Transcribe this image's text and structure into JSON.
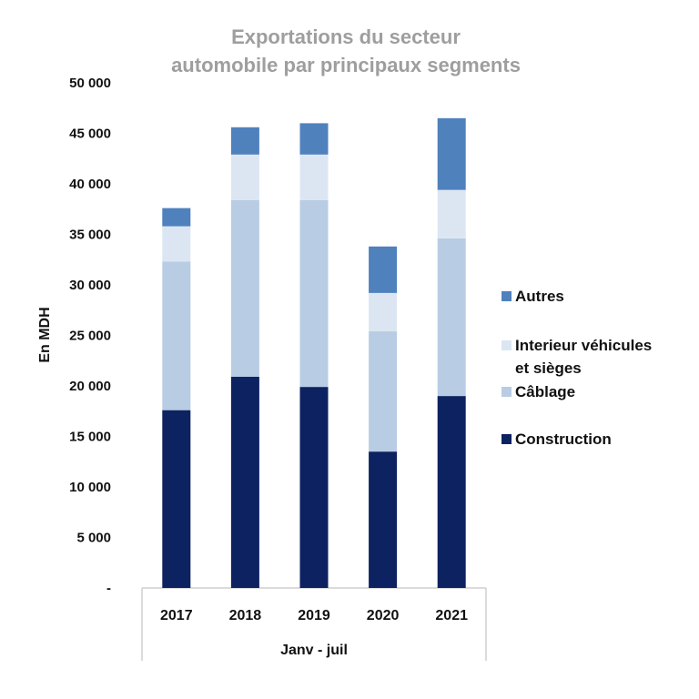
{
  "chart_data": {
    "type": "bar",
    "stacked": true,
    "title": [
      "Exportations du secteur",
      "automobile par principaux segments"
    ],
    "ylabel": "En MDH",
    "xlabel": "Janv - juil",
    "categories": [
      "2017",
      "2018",
      "2019",
      "2020",
      "2021"
    ],
    "ylim": [
      0,
      50000
    ],
    "yticks": [
      0,
      5000,
      10000,
      15000,
      20000,
      25000,
      30000,
      35000,
      40000,
      45000,
      50000
    ],
    "ytick_labels": [
      "-",
      "5 000",
      "10 000",
      "15 000",
      "20 000",
      "25 000",
      "30 000",
      "35 000",
      "40 000",
      "45 000",
      "50 000"
    ],
    "series": [
      {
        "name": "Construction",
        "color": "#0d2260",
        "values": [
          17600,
          20900,
          19900,
          13500,
          19000
        ]
      },
      {
        "name": "Câblage",
        "color": "#b8cce4",
        "values": [
          14700,
          17500,
          18500,
          11900,
          15600
        ]
      },
      {
        "name": "Interieur véhicules et sièges",
        "color": "#dce6f2",
        "values": [
          3500,
          4500,
          4500,
          3800,
          4800
        ]
      },
      {
        "name": "Autres",
        "color": "#4f81bd",
        "values": [
          1800,
          2700,
          3100,
          4600,
          7100
        ]
      }
    ],
    "legend": {
      "position": "right",
      "order": [
        3,
        2,
        1,
        0
      ],
      "lines": [
        [
          "Autres"
        ],
        [
          "Interieur véhicules",
          "et sièges"
        ],
        [
          "Câblage"
        ],
        [
          "Construction"
        ]
      ]
    }
  }
}
